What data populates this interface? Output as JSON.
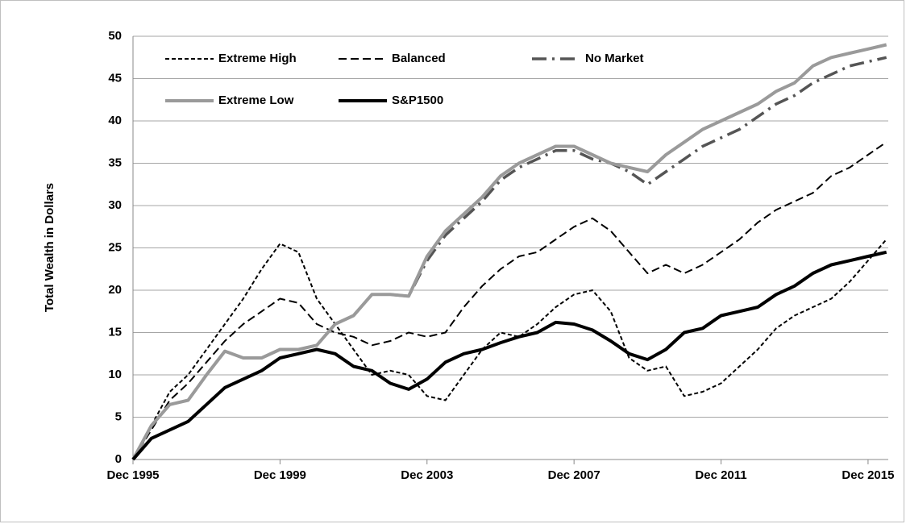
{
  "chart_data": {
    "type": "line",
    "ylabel": "Total Wealth in Dollars",
    "x": [
      1996,
      1996.5,
      1997,
      1997.5,
      1998,
      1998.5,
      1999,
      1999.5,
      2000,
      2000.5,
      2001,
      2001.5,
      2002,
      2002.5,
      2003,
      2003.5,
      2004,
      2004.5,
      2005,
      2005.5,
      2006,
      2006.5,
      2007,
      2007.5,
      2008,
      2008.5,
      2009,
      2009.5,
      2010,
      2010.5,
      2011,
      2011.5,
      2012,
      2012.5,
      2013,
      2013.5,
      2014,
      2014.5,
      2015,
      2015.5,
      2016,
      2016.5
    ],
    "xlim": [
      1996,
      2016.55
    ],
    "xticks": [
      {
        "value": 1996,
        "label": "Dec 1995"
      },
      {
        "value": 2000,
        "label": "Dec 1999"
      },
      {
        "value": 2004,
        "label": "Dec 2003"
      },
      {
        "value": 2008,
        "label": "Dec 2007"
      },
      {
        "value": 2012,
        "label": "Dec 2011"
      },
      {
        "value": 2016,
        "label": "Dec 2015"
      }
    ],
    "ylim": [
      0,
      50
    ],
    "yticks": [
      0,
      5,
      10,
      15,
      20,
      25,
      30,
      35,
      40,
      45,
      50
    ],
    "grid": true,
    "legend": "upper left",
    "series": [
      {
        "name": "Extreme High",
        "color": "#000000",
        "linestyle": "short-dash",
        "values": [
          0,
          4,
          8,
          10,
          13,
          16,
          19,
          22.5,
          25.5,
          24.5,
          19,
          16,
          13,
          10,
          10.5,
          10,
          7.5,
          7,
          10,
          13,
          15,
          14.5,
          16,
          18,
          19.5,
          20,
          17.5,
          12,
          10.5,
          11,
          7.5,
          8,
          9,
          11,
          13,
          15.5,
          17,
          18,
          19,
          21,
          23.5,
          26
        ]
      },
      {
        "name": "Balanced",
        "color": "#000000",
        "linestyle": "dash",
        "values": [
          0,
          3.5,
          7,
          9,
          11.5,
          14,
          16,
          17.5,
          19,
          18.5,
          16,
          15,
          14.5,
          13.5,
          14,
          15,
          14.5,
          15,
          18,
          20.5,
          22.5,
          24,
          24.5,
          26,
          27.5,
          28.5,
          27,
          24.5,
          22,
          23,
          22,
          23,
          24.5,
          26,
          28,
          29.5,
          30.5,
          31.5,
          33.5,
          34.5,
          36,
          37.5
        ]
      },
      {
        "name": "No Market",
        "color": "#555555",
        "linestyle": "dash-dot",
        "values": [
          0,
          4,
          6.5,
          7,
          10,
          12.8,
          12,
          12,
          13,
          13,
          13.5,
          16,
          17,
          19.5,
          19.5,
          19.3,
          23.5,
          26.5,
          28.5,
          30.5,
          33,
          34.5,
          35.5,
          36.5,
          36.5,
          35.5,
          35,
          34,
          32.5,
          34,
          35.5,
          37,
          38,
          39,
          40.5,
          42,
          43,
          44.5,
          45.5,
          46.5,
          47,
          47.5
        ]
      },
      {
        "name": "Extreme Low",
        "color": "#9a9a9a",
        "linestyle": "solid",
        "values": [
          0,
          4,
          6.5,
          7,
          10,
          12.8,
          12,
          12,
          13,
          13,
          13.5,
          16,
          17,
          19.5,
          19.5,
          19.3,
          24,
          27,
          29,
          31,
          33.5,
          35,
          36,
          37,
          37,
          36,
          35,
          34.5,
          34,
          36,
          37.5,
          39,
          40,
          41,
          42,
          43.5,
          44.5,
          46.5,
          47.5,
          48,
          48.5,
          49
        ]
      },
      {
        "name": "S&P1500",
        "color": "#000000",
        "linestyle": "solid",
        "values": [
          0,
          2.5,
          3.5,
          4.5,
          6.5,
          8.5,
          9.5,
          10.5,
          12,
          12.5,
          13,
          12.5,
          11,
          10.5,
          9,
          8.3,
          9.5,
          11.5,
          12.5,
          13,
          13.8,
          14.5,
          15,
          16.2,
          16,
          15.3,
          14,
          12.5,
          11.8,
          13,
          15,
          15.5,
          17,
          17.5,
          18,
          19.5,
          20.5,
          22,
          23,
          23.5,
          24,
          24.5
        ]
      }
    ]
  }
}
